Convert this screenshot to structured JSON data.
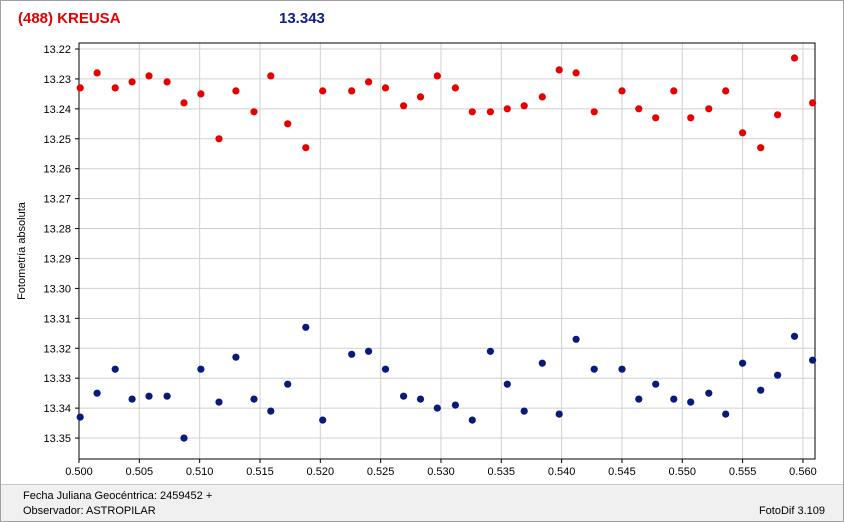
{
  "header": {
    "object_name": "(488) KREUSA",
    "magnitude": "13.343"
  },
  "footer": {
    "jd_label": "Fecha Juliana Geocéntrica: 2459452 +",
    "observer_label": "Observador: ASTROPILAR",
    "software": "FotoDif 3.109"
  },
  "colors": {
    "series_red": "#e80000",
    "series_blue": "#0a1a7a",
    "grid": "#d0d0d0"
  },
  "chart_data": {
    "type": "scatter",
    "ylabel": "Fotometría absoluta",
    "xlim": [
      0.5,
      0.561
    ],
    "ylim": [
      13.218,
      13.357
    ],
    "y_inverted": true,
    "grid": true,
    "x_ticks": [
      "0.500",
      "0.505",
      "0.510",
      "0.515",
      "0.520",
      "0.525",
      "0.530",
      "0.535",
      "0.540",
      "0.545",
      "0.550",
      "0.555",
      "0.560"
    ],
    "y_ticks": [
      "13.22",
      "13.23",
      "13.24",
      "13.25",
      "13.26",
      "13.27",
      "13.28",
      "13.29",
      "13.30",
      "13.31",
      "13.32",
      "13.33",
      "13.34",
      "13.35"
    ],
    "series": [
      {
        "color": "#e80000",
        "points": [
          [
            0.5001,
            13.233
          ],
          [
            0.5015,
            13.228
          ],
          [
            0.503,
            13.233
          ],
          [
            0.5044,
            13.231
          ],
          [
            0.5058,
            13.229
          ],
          [
            0.5073,
            13.231
          ],
          [
            0.5087,
            13.238
          ],
          [
            0.5101,
            13.235
          ],
          [
            0.5116,
            13.25
          ],
          [
            0.513,
            13.234
          ],
          [
            0.5145,
            13.241
          ],
          [
            0.5159,
            13.229
          ],
          [
            0.5173,
            13.245
          ],
          [
            0.5188,
            13.253
          ],
          [
            0.5202,
            13.234
          ],
          [
            0.5226,
            13.234
          ],
          [
            0.524,
            13.231
          ],
          [
            0.5254,
            13.233
          ],
          [
            0.5269,
            13.239
          ],
          [
            0.5283,
            13.236
          ],
          [
            0.5297,
            13.229
          ],
          [
            0.5312,
            13.233
          ],
          [
            0.5326,
            13.241
          ],
          [
            0.5341,
            13.241
          ],
          [
            0.5355,
            13.24
          ],
          [
            0.5369,
            13.239
          ],
          [
            0.5384,
            13.236
          ],
          [
            0.5398,
            13.227
          ],
          [
            0.5412,
            13.228
          ],
          [
            0.5427,
            13.241
          ],
          [
            0.545,
            13.234
          ],
          [
            0.5464,
            13.24
          ],
          [
            0.5478,
            13.243
          ],
          [
            0.5493,
            13.234
          ],
          [
            0.5507,
            13.243
          ],
          [
            0.5522,
            13.24
          ],
          [
            0.5536,
            13.234
          ],
          [
            0.555,
            13.248
          ],
          [
            0.5565,
            13.253
          ],
          [
            0.5579,
            13.242
          ],
          [
            0.5593,
            13.223
          ],
          [
            0.5608,
            13.238
          ]
        ]
      },
      {
        "color": "#0a1a7a",
        "points": [
          [
            0.5001,
            13.343
          ],
          [
            0.5015,
            13.335
          ],
          [
            0.503,
            13.327
          ],
          [
            0.5044,
            13.337
          ],
          [
            0.5058,
            13.336
          ],
          [
            0.5073,
            13.336
          ],
          [
            0.5087,
            13.35
          ],
          [
            0.5101,
            13.327
          ],
          [
            0.5116,
            13.338
          ],
          [
            0.513,
            13.323
          ],
          [
            0.5145,
            13.337
          ],
          [
            0.5159,
            13.341
          ],
          [
            0.5173,
            13.332
          ],
          [
            0.5188,
            13.313
          ],
          [
            0.5202,
            13.344
          ],
          [
            0.5226,
            13.322
          ],
          [
            0.524,
            13.321
          ],
          [
            0.5254,
            13.327
          ],
          [
            0.5269,
            13.336
          ],
          [
            0.5283,
            13.337
          ],
          [
            0.5297,
            13.34
          ],
          [
            0.5312,
            13.339
          ],
          [
            0.5326,
            13.344
          ],
          [
            0.5341,
            13.321
          ],
          [
            0.5355,
            13.332
          ],
          [
            0.5369,
            13.341
          ],
          [
            0.5384,
            13.325
          ],
          [
            0.5398,
            13.342
          ],
          [
            0.5412,
            13.317
          ],
          [
            0.5427,
            13.327
          ],
          [
            0.545,
            13.327
          ],
          [
            0.5464,
            13.337
          ],
          [
            0.5478,
            13.332
          ],
          [
            0.5493,
            13.337
          ],
          [
            0.5507,
            13.338
          ],
          [
            0.5522,
            13.335
          ],
          [
            0.5536,
            13.342
          ],
          [
            0.555,
            13.325
          ],
          [
            0.5565,
            13.334
          ],
          [
            0.5579,
            13.329
          ],
          [
            0.5593,
            13.316
          ],
          [
            0.5608,
            13.324
          ]
        ]
      }
    ]
  }
}
